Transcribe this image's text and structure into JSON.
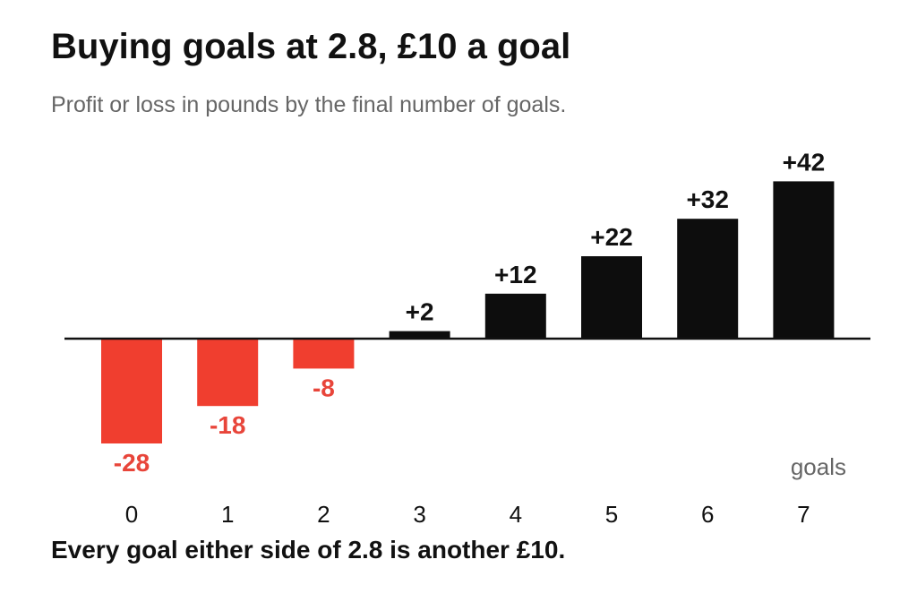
{
  "chart_data": {
    "type": "bar",
    "title": "Buying goals at 2.8, £10 a goal",
    "subtitle": "Profit or loss in pounds by the final number of goals.",
    "xlabel": "goals",
    "ylabel": "",
    "categories": [
      "0",
      "1",
      "2",
      "3",
      "4",
      "5",
      "6",
      "7"
    ],
    "values": [
      -28,
      -18,
      -8,
      2,
      12,
      22,
      32,
      42
    ],
    "data_labels": [
      "-28",
      "-18",
      "-8",
      "+2",
      "+12",
      "+22",
      "+32",
      "+42"
    ],
    "ylim": [
      -28,
      42
    ],
    "grid": false,
    "legend": "none",
    "note": "Every goal either side of 2.8 is another £10.",
    "colors": {
      "positive": "#0d0d0d",
      "negative": "#f03e2f",
      "negative_label": "#e8453a",
      "axis": "#111111"
    }
  }
}
